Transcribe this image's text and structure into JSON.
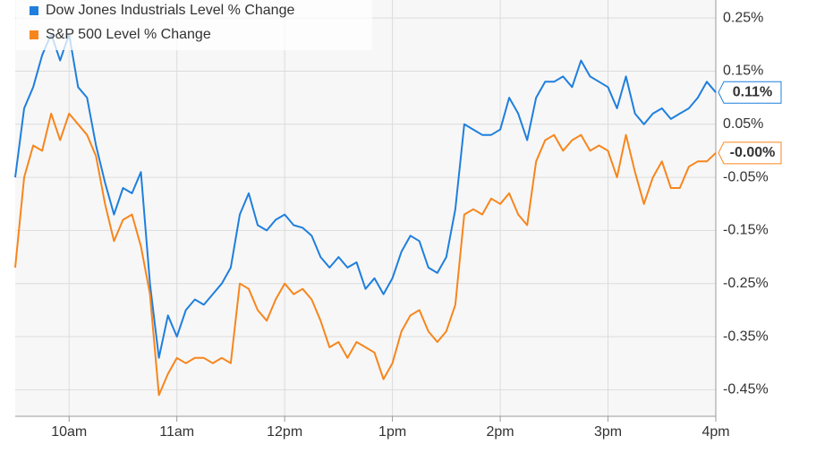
{
  "chart_data": {
    "type": "line",
    "x": [
      570,
      575,
      580,
      585,
      590,
      595,
      600,
      605,
      610,
      615,
      620,
      625,
      630,
      635,
      640,
      645,
      650,
      655,
      660,
      665,
      670,
      675,
      680,
      685,
      690,
      695,
      700,
      705,
      710,
      715,
      720,
      725,
      730,
      735,
      740,
      745,
      750,
      755,
      760,
      765,
      770,
      775,
      780,
      785,
      790,
      795,
      800,
      805,
      810,
      815,
      820,
      825,
      830,
      835,
      840,
      845,
      850,
      855,
      860,
      865,
      870,
      875,
      880,
      885,
      890,
      895,
      900,
      905,
      910,
      915,
      920,
      925,
      930,
      935,
      940,
      945,
      950,
      955,
      960
    ],
    "series": [
      {
        "name": "Dow Jones Industrials Level % Change",
        "color": "#1f7fdd",
        "values": [
          -0.05,
          0.08,
          0.12,
          0.18,
          0.22,
          0.17,
          0.22,
          0.12,
          0.1,
          0.01,
          -0.06,
          -0.12,
          -0.07,
          -0.08,
          -0.04,
          -0.25,
          -0.39,
          -0.31,
          -0.35,
          -0.3,
          -0.28,
          -0.29,
          -0.27,
          -0.25,
          -0.22,
          -0.12,
          -0.08,
          -0.14,
          -0.15,
          -0.13,
          -0.12,
          -0.14,
          -0.145,
          -0.16,
          -0.2,
          -0.22,
          -0.2,
          -0.22,
          -0.21,
          -0.26,
          -0.24,
          -0.27,
          -0.24,
          -0.19,
          -0.16,
          -0.17,
          -0.22,
          -0.23,
          -0.2,
          -0.11,
          0.05,
          0.04,
          0.03,
          0.03,
          0.04,
          0.1,
          0.07,
          0.02,
          0.1,
          0.13,
          0.13,
          0.14,
          0.12,
          0.17,
          0.14,
          0.13,
          0.12,
          0.08,
          0.14,
          0.07,
          0.05,
          0.07,
          0.08,
          0.06,
          0.07,
          0.08,
          0.1,
          0.13,
          0.11
        ],
        "value_labels": [
          null,
          null,
          null,
          null,
          null,
          null,
          null,
          null,
          null,
          null,
          null,
          null,
          null,
          null,
          null,
          null,
          null,
          null,
          null,
          null,
          null,
          null,
          null,
          null,
          null,
          null,
          null,
          null,
          null,
          null,
          null,
          null,
          null,
          null,
          null,
          null,
          null,
          null,
          null,
          null,
          null,
          null,
          null,
          null,
          null,
          null,
          null,
          null,
          null,
          null,
          null,
          null,
          null,
          null,
          null,
          null,
          null,
          null,
          null,
          null,
          null,
          null,
          null,
          null,
          null,
          null,
          null,
          null,
          null,
          null,
          null,
          null,
          null,
          null,
          null,
          null,
          null,
          null,
          "0.11%"
        ]
      },
      {
        "name": "S&P 500 Level % Change",
        "color": "#f7861d",
        "values": [
          -0.22,
          -0.05,
          0.01,
          0.0,
          0.07,
          0.02,
          0.07,
          0.05,
          0.03,
          -0.01,
          -0.1,
          -0.17,
          -0.13,
          -0.12,
          -0.18,
          -0.27,
          -0.46,
          -0.42,
          -0.39,
          -0.4,
          -0.39,
          -0.39,
          -0.4,
          -0.39,
          -0.4,
          -0.25,
          -0.26,
          -0.3,
          -0.32,
          -0.28,
          -0.25,
          -0.27,
          -0.26,
          -0.28,
          -0.32,
          -0.37,
          -0.36,
          -0.39,
          -0.36,
          -0.37,
          -0.38,
          -0.43,
          -0.4,
          -0.34,
          -0.31,
          -0.3,
          -0.34,
          -0.36,
          -0.34,
          -0.29,
          -0.12,
          -0.11,
          -0.12,
          -0.09,
          -0.1,
          -0.08,
          -0.12,
          -0.14,
          -0.02,
          0.02,
          0.03,
          0.0,
          0.02,
          0.03,
          0.0,
          0.01,
          0.0,
          -0.05,
          0.03,
          -0.04,
          -0.1,
          -0.05,
          -0.02,
          -0.07,
          -0.07,
          -0.03,
          -0.02,
          -0.02,
          -0.004
        ],
        "value_labels": [
          null,
          null,
          null,
          null,
          null,
          null,
          null,
          null,
          null,
          null,
          null,
          null,
          null,
          null,
          null,
          null,
          null,
          null,
          null,
          null,
          null,
          null,
          null,
          null,
          null,
          null,
          null,
          null,
          null,
          null,
          null,
          null,
          null,
          null,
          null,
          null,
          null,
          null,
          null,
          null,
          null,
          null,
          null,
          null,
          null,
          null,
          null,
          null,
          null,
          null,
          null,
          null,
          null,
          null,
          null,
          null,
          null,
          null,
          null,
          null,
          null,
          null,
          null,
          null,
          null,
          null,
          null,
          null,
          null,
          null,
          null,
          null,
          null,
          null,
          null,
          null,
          null,
          null,
          "-0.00%"
        ]
      }
    ],
    "xlim": [
      570,
      960
    ],
    "xticks": [
      {
        "value": 600,
        "label": "10am"
      },
      {
        "value": 660,
        "label": "11am"
      },
      {
        "value": 720,
        "label": "12pm"
      },
      {
        "value": 780,
        "label": "1pm"
      },
      {
        "value": 840,
        "label": "2pm"
      },
      {
        "value": 900,
        "label": "3pm"
      },
      {
        "value": 960,
        "label": "4pm"
      }
    ],
    "ylim": [
      -0.5,
      0.284
    ],
    "yticks": [
      {
        "value": 0.25,
        "label": "0.25%"
      },
      {
        "value": 0.15,
        "label": "0.15%"
      },
      {
        "value": 0.05,
        "label": "0.05%"
      },
      {
        "value": -0.05,
        "label": "-0.05%"
      },
      {
        "value": -0.15,
        "label": "-0.15%"
      },
      {
        "value": -0.25,
        "label": "-0.25%"
      },
      {
        "value": -0.35,
        "label": "-0.35%"
      },
      {
        "value": -0.45,
        "label": "-0.45%"
      }
    ],
    "grid": true,
    "legend": "top-left"
  }
}
